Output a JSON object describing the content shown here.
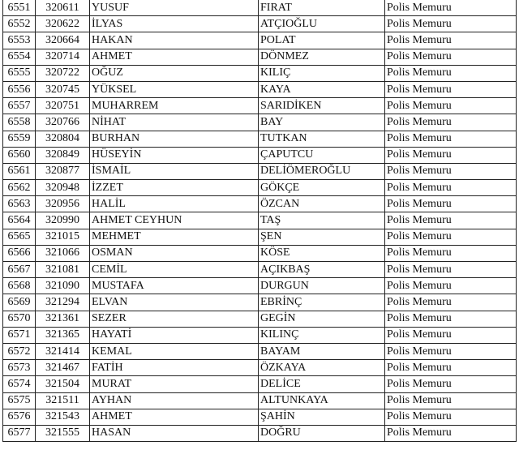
{
  "rows": [
    [
      "6551",
      "320611",
      "YUSUF",
      "FIRAT",
      "Polis Memuru"
    ],
    [
      "6552",
      "320622",
      "İLYAS",
      "ATÇIOĞLU",
      "Polis Memuru"
    ],
    [
      "6553",
      "320664",
      "HAKAN",
      "POLAT",
      "Polis Memuru"
    ],
    [
      "6554",
      "320714",
      "AHMET",
      "DÖNMEZ",
      "Polis Memuru"
    ],
    [
      "6555",
      "320722",
      "OĞUZ",
      "KILIÇ",
      "Polis Memuru"
    ],
    [
      "6556",
      "320745",
      "YÜKSEL",
      "KAYA",
      "Polis Memuru"
    ],
    [
      "6557",
      "320751",
      "MUHARREM",
      "SARIDİKEN",
      "Polis Memuru"
    ],
    [
      "6558",
      "320766",
      "NİHAT",
      "BAY",
      "Polis Memuru"
    ],
    [
      "6559",
      "320804",
      "BURHAN",
      "TUTKAN",
      "Polis Memuru"
    ],
    [
      "6560",
      "320849",
      "HÜSEYİN",
      "ÇAPUTCU",
      "Polis Memuru"
    ],
    [
      "6561",
      "320877",
      "İSMAİL",
      "DELİÖMEROĞLU",
      "Polis Memuru"
    ],
    [
      "6562",
      "320948",
      "İZZET",
      "GÖKÇE",
      "Polis Memuru"
    ],
    [
      "6563",
      "320956",
      "HALİL",
      "ÖZCAN",
      "Polis Memuru"
    ],
    [
      "6564",
      "320990",
      "AHMET CEYHUN",
      "TAŞ",
      "Polis Memuru"
    ],
    [
      "6565",
      "321015",
      "MEHMET",
      "ŞEN",
      "Polis Memuru"
    ],
    [
      "6566",
      "321066",
      "OSMAN",
      "KÖSE",
      "Polis Memuru"
    ],
    [
      "6567",
      "321081",
      "CEMİL",
      "AÇIKBAŞ",
      "Polis Memuru"
    ],
    [
      "6568",
      "321090",
      "MUSTAFA",
      "DURGUN",
      "Polis Memuru"
    ],
    [
      "6569",
      "321294",
      "ELVAN",
      "EBRİNÇ",
      "Polis Memuru"
    ],
    [
      "6570",
      "321361",
      "SEZER",
      "GEGİN",
      "Polis Memuru"
    ],
    [
      "6571",
      "321365",
      "HAYATİ",
      "KILINÇ",
      "Polis Memuru"
    ],
    [
      "6572",
      "321414",
      "KEMAL",
      "BAYAM",
      "Polis Memuru"
    ],
    [
      "6573",
      "321467",
      "FATİH",
      "ÖZKAYA",
      "Polis Memuru"
    ],
    [
      "6574",
      "321504",
      "MURAT",
      "DELİCE",
      "Polis Memuru"
    ],
    [
      "6575",
      "321511",
      "AYHAN",
      "ALTUNKAYA",
      "Polis Memuru"
    ],
    [
      "6576",
      "321543",
      "AHMET",
      "ŞAHİN",
      "Polis Memuru"
    ],
    [
      "6577",
      "321555",
      "HASAN",
      "DOĞRU",
      "Polis Memuru"
    ]
  ]
}
